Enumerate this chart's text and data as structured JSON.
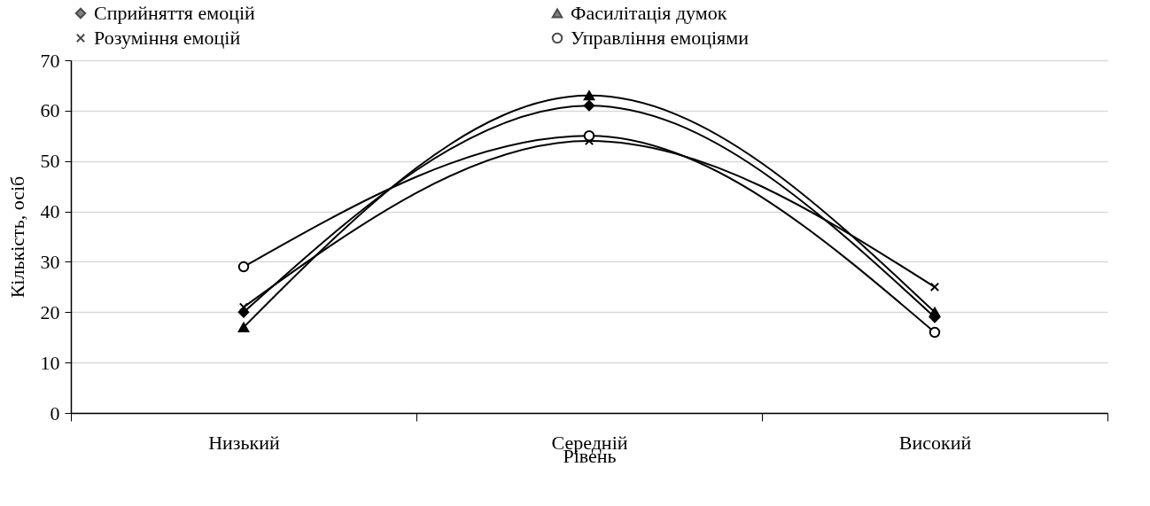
{
  "chart_data": {
    "type": "line",
    "xlabel": "Рівень",
    "ylabel": "Кількість, осіб",
    "categories": [
      "Низький",
      "Середній",
      "Високий"
    ],
    "series": [
      {
        "name": "Сприйняття емоцій",
        "color": "#000000",
        "marker": "diamond",
        "values": [
          20,
          61,
          19
        ]
      },
      {
        "name": "Фасилітація думок",
        "color": "#000000",
        "marker": "triangle",
        "values": [
          17,
          63,
          20
        ]
      },
      {
        "name": "Розуміння емоцій",
        "color": "#000000",
        "marker": "cross",
        "values": [
          21,
          54,
          25
        ]
      },
      {
        "name": "Управління емоціями",
        "color": "#000000",
        "marker": "circle",
        "values": [
          29,
          55,
          16
        ]
      }
    ],
    "ylim": [
      0,
      70
    ],
    "yticks": [
      0,
      10,
      20,
      30,
      40,
      50,
      60,
      70
    ],
    "grid": "y",
    "legend": "top"
  }
}
